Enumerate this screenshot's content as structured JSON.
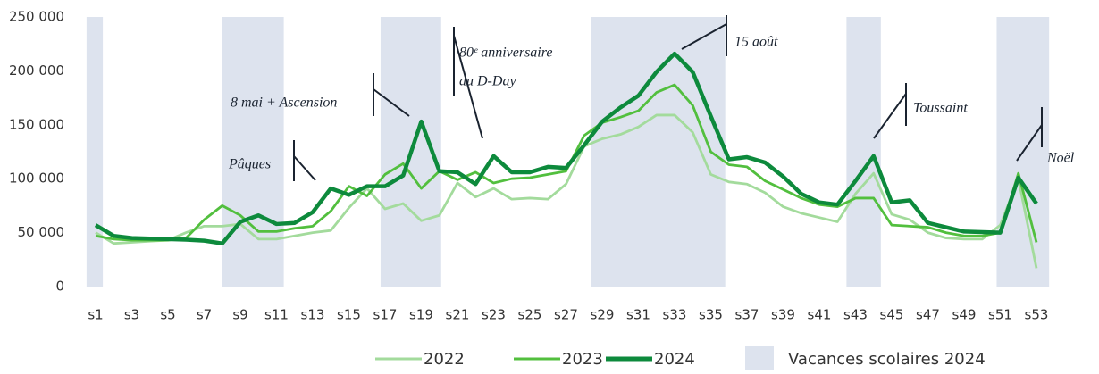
{
  "chart_data": {
    "type": "line",
    "categories": [
      "s1",
      null,
      "s3",
      null,
      "s5",
      null,
      "s7",
      null,
      "s9",
      null,
      "s11",
      null,
      "s13",
      null,
      "s15",
      null,
      "s17",
      null,
      "s19",
      null,
      "s21",
      null,
      "s23",
      null,
      "s25",
      null,
      "s27",
      null,
      "s29",
      null,
      "s31",
      null,
      "s33",
      null,
      "s35",
      null,
      "s37",
      null,
      "s39",
      null,
      "s41",
      null,
      "s43",
      null,
      "s45",
      null,
      "s47",
      null,
      "s49",
      null,
      "s51",
      null,
      "s53"
    ],
    "series": [
      {
        "name": "2022",
        "color": "#a3db9c",
        "values": [
          50000,
          40000,
          41000,
          42000,
          43000,
          50000,
          56000,
          56000,
          58000,
          44000,
          44000,
          47000,
          50000,
          52000,
          73000,
          91000,
          72000,
          77000,
          61000,
          66000,
          96000,
          83000,
          91000,
          81000,
          82000,
          81000,
          95000,
          130000,
          137000,
          141000,
          148000,
          159000,
          159000,
          143000,
          104000,
          97000,
          95000,
          87000,
          74000,
          68000,
          64000,
          60000,
          86000,
          105000,
          67000,
          62000,
          50000,
          45000,
          44000,
          44000,
          57000,
          100000,
          17000
        ]
      },
      {
        "name": "2023",
        "color": "#52bf3e",
        "values": [
          47000,
          44000,
          43000,
          43000,
          43000,
          45000,
          62000,
          75000,
          66000,
          51000,
          51000,
          54000,
          56000,
          70000,
          93000,
          84000,
          104000,
          114000,
          91000,
          107000,
          99000,
          106000,
          96000,
          100000,
          101000,
          104000,
          107000,
          140000,
          152000,
          157000,
          163000,
          180000,
          187000,
          168000,
          125000,
          113000,
          111000,
          98000,
          90000,
          82000,
          76000,
          74000,
          82000,
          82000,
          57000,
          56000,
          55000,
          50000,
          47000,
          47000,
          50000,
          105000,
          41000
        ]
      },
      {
        "name": "2024",
        "color": "#0d8a3c",
        "values": [
          57000,
          47000,
          45000,
          44500,
          44000,
          43500,
          42500,
          40000,
          60000,
          66000,
          58000,
          59000,
          69000,
          91000,
          85000,
          93000,
          93000,
          103000,
          153000,
          107000,
          106000,
          95000,
          121000,
          106000,
          106000,
          111000,
          110000,
          131000,
          153000,
          166000,
          177000,
          199000,
          216000,
          199000,
          158000,
          118000,
          120000,
          115000,
          102000,
          86000,
          78000,
          76000,
          98000,
          121000,
          78000,
          80000,
          59000,
          55000,
          51000,
          50500,
          50000,
          101000,
          77000
        ]
      }
    ],
    "ylim": [
      0,
      250000
    ],
    "yticks": [
      0,
      {
        "value": 50000,
        "label": "50 000"
      },
      {
        "value": 100000,
        "label": "100 000"
      },
      {
        "value": 150000,
        "label": "150 000"
      },
      {
        "value": 200000,
        "label": "200 000"
      },
      {
        "value": 250000,
        "label": "250 000"
      }
    ],
    "bands_name": "Vacances scolaires 2024",
    "bands_color": "#dde3ee",
    "bands": [
      [
        0.5,
        1.4
      ],
      [
        8,
        11.4
      ],
      [
        16.75,
        20.1
      ],
      [
        28.4,
        35.8
      ],
      [
        42.5,
        44.4
      ],
      [
        50.8,
        53.7
      ]
    ],
    "annotations": [
      "8 mai + Ascension",
      "Pâques",
      "80ᵉ anniversaire",
      "du D-Day",
      "15 août",
      "Toussaint",
      "Noël"
    ]
  }
}
